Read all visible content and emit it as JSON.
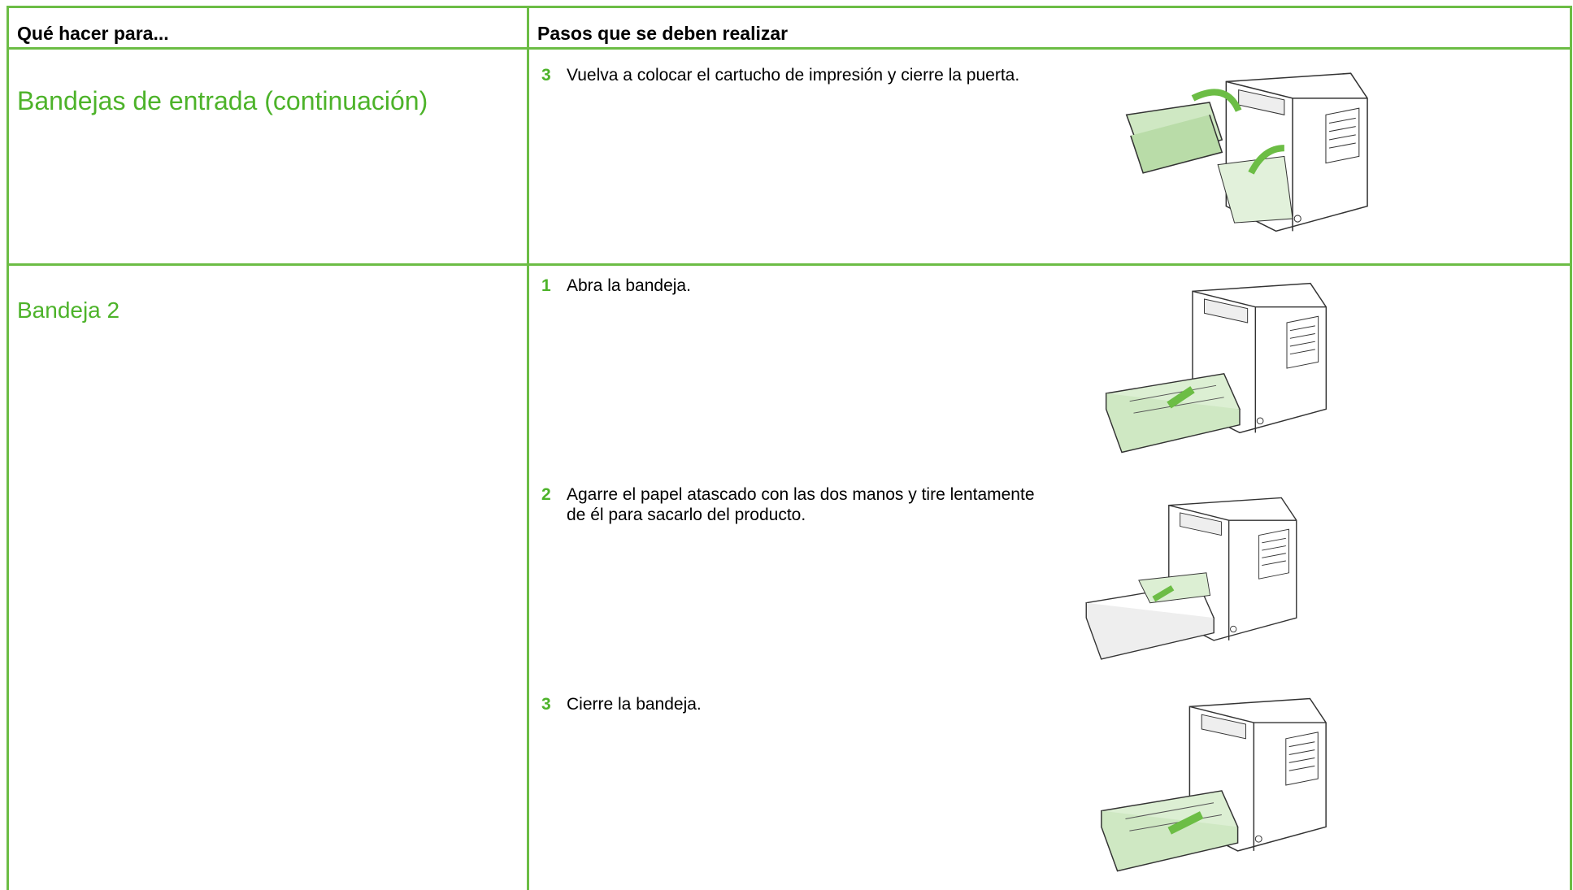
{
  "header": {
    "col1": "Qué hacer para...",
    "col2": "Pasos que se deben realizar"
  },
  "rows": [
    {
      "label": "Bandejas de entrada (continuación)",
      "steps": [
        {
          "number": 3,
          "text": "Vuelva a colocar el cartucho de impresión y cierre la puerta."
        }
      ]
    },
    {
      "label": "Bandeja 2",
      "steps": [
        {
          "number": 1,
          "text": "Abra la bandeja."
        },
        {
          "number": 2,
          "text": "Agarre el papel atascado con las dos manos y tire lentamente de él para sacarlo del producto."
        },
        {
          "number": 3,
          "text": "Cierre la bandeja."
        }
      ]
    }
  ]
}
